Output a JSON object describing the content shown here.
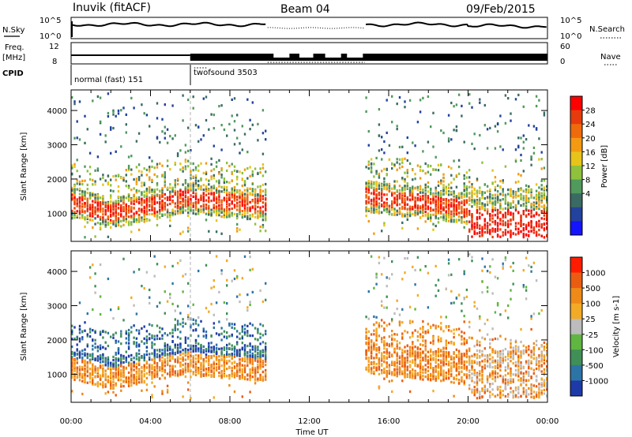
{
  "header": {
    "station": "Inuvik (fitACF)",
    "beam": "Beam 04",
    "date": "09/Feb/2015"
  },
  "strip_panels": {
    "nsky": {
      "label": "N.Sky",
      "ticks": [
        "10^5",
        "10^0"
      ]
    },
    "nsearch": {
      "label": "N.Search",
      "ticks": [
        "10^5",
        "10^0"
      ]
    },
    "freq": {
      "label_top": "Freq.",
      "label_bottom": "[MHz]",
      "ticks": [
        "12",
        "8"
      ]
    },
    "nave": {
      "label": "Nave",
      "ticks": [
        "60",
        "0"
      ]
    },
    "cpid": {
      "label": "CPID",
      "modes": [
        {
          "name": "normal (fast) 151",
          "start_hour": 0,
          "end_hour": 6
        },
        {
          "name": "twofsound 3503",
          "start_hour": 6,
          "end_hour": 24
        }
      ]
    }
  },
  "chart_data": [
    {
      "type": "heatmap",
      "name": "power",
      "ylabel": "Slant Range [km]",
      "xlabel": "Time UT",
      "ylim": [
        180,
        4600
      ],
      "xlim_hours": [
        0,
        24
      ],
      "x_ticks": [
        "00:00",
        "04:00",
        "08:00",
        "12:00",
        "16:00",
        "20:00",
        "00:00"
      ],
      "y_ticks": [
        1000,
        2000,
        3000,
        4000
      ],
      "colorbar": {
        "label": "Power [dB]",
        "ticks": [
          "28",
          "24",
          "20",
          "16",
          "12",
          "8",
          "4"
        ]
      },
      "data_gaps_hours": [
        [
          9.85,
          14.8
        ]
      ],
      "echo_bands_km": [
        {
          "start_hour": 0,
          "end_hour": 9.8,
          "range": [
            700,
            1900
          ]
        },
        {
          "start_hour": 14.8,
          "end_hour": 20,
          "range": [
            800,
            2200
          ]
        },
        {
          "start_hour": 20,
          "end_hour": 24,
          "range": [
            300,
            2200
          ]
        }
      ]
    },
    {
      "type": "heatmap",
      "name": "velocity",
      "ylabel": "Slant Range [km]",
      "xlabel": "Time UT",
      "ylim": [
        180,
        4600
      ],
      "xlim_hours": [
        0,
        24
      ],
      "x_ticks": [
        "00:00",
        "04:00",
        "08:00",
        "12:00",
        "16:00",
        "20:00",
        "00:00"
      ],
      "y_ticks": [
        1000,
        2000,
        3000,
        4000
      ],
      "colorbar": {
        "label": "Velocity [m s-1]",
        "ticks": [
          "1000",
          "500",
          "100",
          "25",
          "-25",
          "-100",
          "-500",
          "-1000"
        ]
      },
      "data_gaps_hours": [
        [
          9.85,
          14.8
        ]
      ],
      "echo_bands_km": [
        {
          "start_hour": 0,
          "end_hour": 9.8,
          "range": [
            700,
            1900
          ]
        },
        {
          "start_hour": 14.8,
          "end_hour": 20,
          "range": [
            800,
            2200
          ]
        },
        {
          "start_hour": 20,
          "end_hour": 24,
          "range": [
            300,
            2200
          ]
        }
      ]
    }
  ],
  "palettes": {
    "power": [
      "#1414ff",
      "#23429e",
      "#3a6b63",
      "#4f9a5c",
      "#8fc13c",
      "#e6c41a",
      "#f39a12",
      "#ee6a0c",
      "#e63b0c",
      "#ff0000"
    ],
    "velocity": [
      "#1e3aa8",
      "#2d74a6",
      "#3f8f57",
      "#60b641",
      "#bcbcbc",
      "#f3aa24",
      "#ee8a18",
      "#ea5c12",
      "#ff1c00"
    ]
  }
}
